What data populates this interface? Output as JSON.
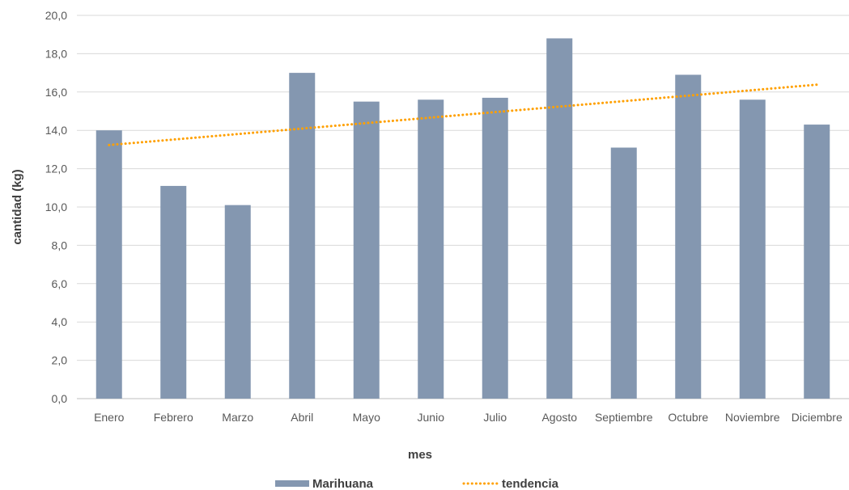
{
  "chart_data": {
    "type": "bar",
    "title": "",
    "xlabel": "mes",
    "ylabel": "cantidad (kg)",
    "ylim": [
      0,
      20
    ],
    "yticks": [
      "0,0",
      "2,0",
      "4,0",
      "6,0",
      "8,0",
      "10,0",
      "12,0",
      "14,0",
      "16,0",
      "18,0",
      "20,0"
    ],
    "grid": true,
    "legend_position": "bottom",
    "categories": [
      "Enero",
      "Febrero",
      "Marzo",
      "Abril",
      "Mayo",
      "Junio",
      "Julio",
      "Agosto",
      "Septiembre",
      "Octubre",
      "Noviembre",
      "Diciembre"
    ],
    "series": [
      {
        "name": "Marihuana",
        "kind": "bar",
        "color": "#8497b0",
        "values": [
          14.0,
          11.1,
          10.1,
          17.0,
          15.5,
          15.6,
          15.7,
          18.8,
          13.1,
          16.9,
          15.6,
          14.3
        ]
      },
      {
        "name": "tendencia",
        "kind": "linear-trendline",
        "color": "#ffa000",
        "style": "dotted"
      }
    ]
  }
}
